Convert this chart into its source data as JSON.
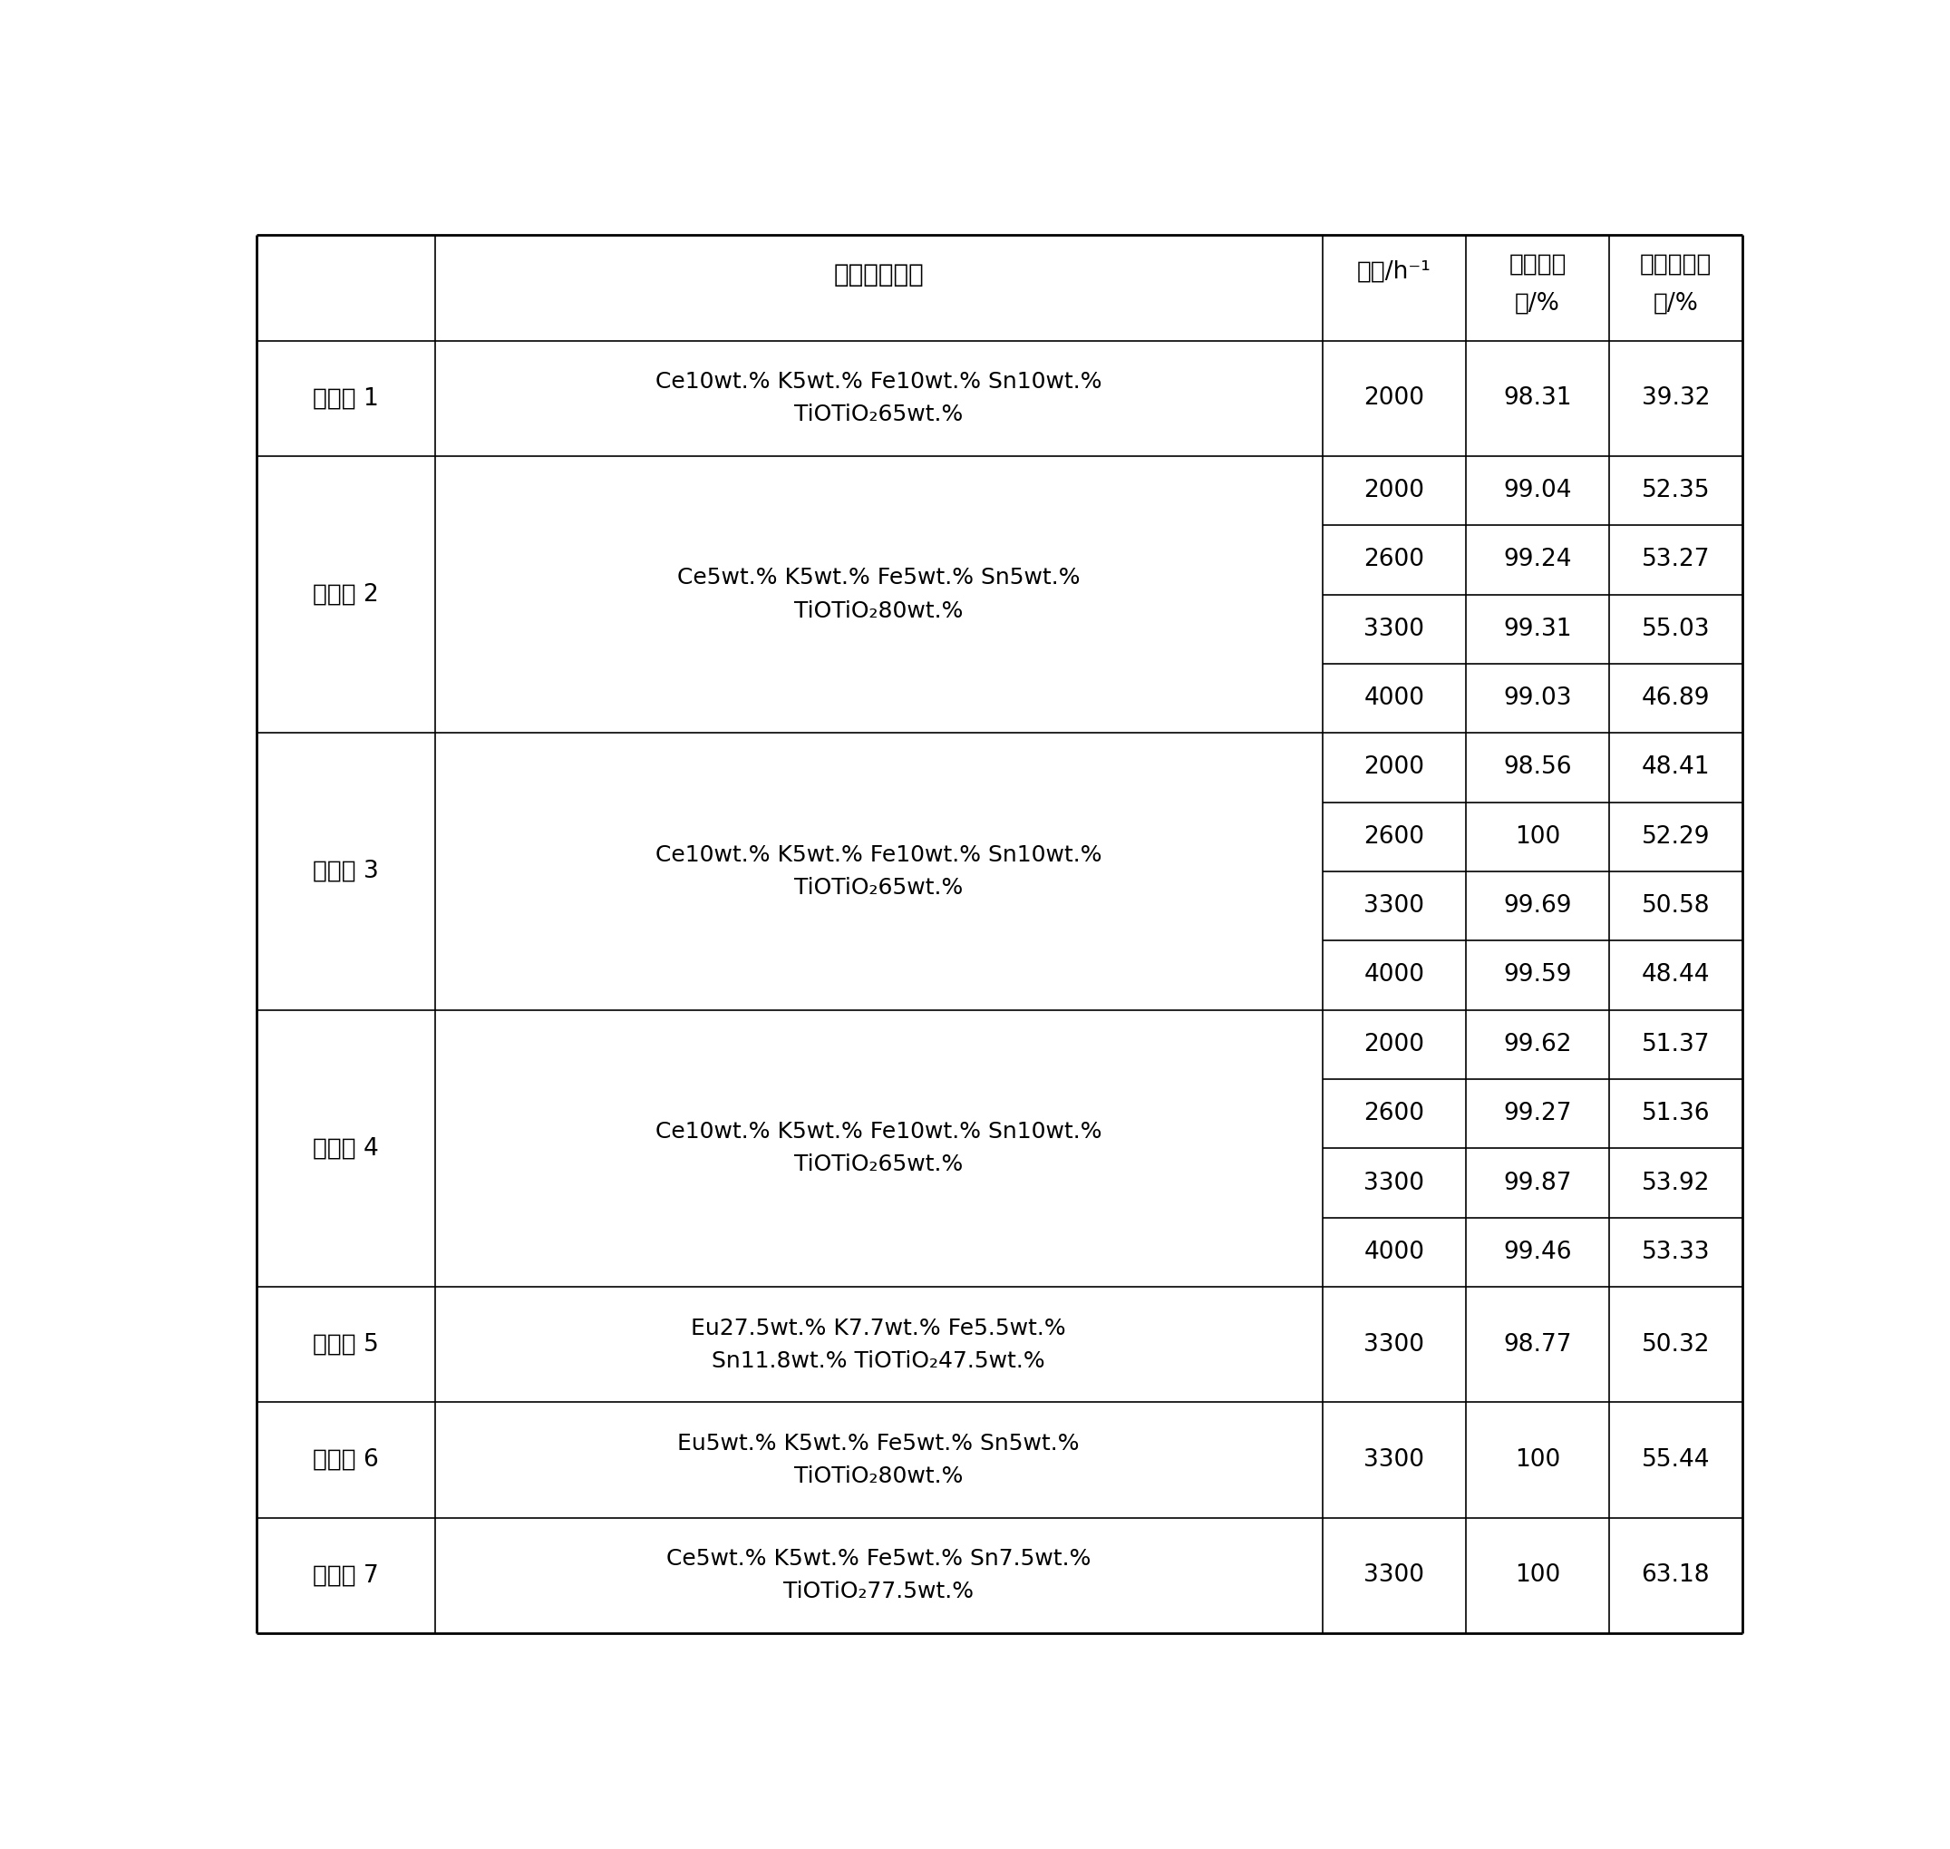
{
  "col_headers_line1": [
    "活性组分含量",
    "空速/h⁻¹",
    "乙烷转化",
    "氯乙烯选择"
  ],
  "col_headers_line2": [
    "",
    "",
    "率/%",
    "性/%"
  ],
  "rows": [
    {
      "example": "实施例 1",
      "comp_line1": "Ce10wt.% K5wt.% Fe10wt.% Sn10wt.%",
      "comp_line2_before": "TiO",
      "comp_line2_after": "65wt.%",
      "data": [
        [
          "2000",
          "98.31",
          "39.32"
        ]
      ]
    },
    {
      "example": "实施例 2",
      "comp_line1": "Ce5wt.% K5wt.% Fe5wt.% Sn5wt.%",
      "comp_line2_before": "TiO",
      "comp_line2_after": "80wt.%",
      "data": [
        [
          "2000",
          "99.04",
          "52.35"
        ],
        [
          "2600",
          "99.24",
          "53.27"
        ],
        [
          "3300",
          "99.31",
          "55.03"
        ],
        [
          "4000",
          "99.03",
          "46.89"
        ]
      ]
    },
    {
      "example": "实施例 3",
      "comp_line1": "Ce10wt.% K5wt.% Fe10wt.% Sn10wt.%",
      "comp_line2_before": "TiO",
      "comp_line2_after": "65wt.%",
      "data": [
        [
          "2000",
          "98.56",
          "48.41"
        ],
        [
          "2600",
          "100",
          "52.29"
        ],
        [
          "3300",
          "99.69",
          "50.58"
        ],
        [
          "4000",
          "99.59",
          "48.44"
        ]
      ]
    },
    {
      "example": "实施例 4",
      "comp_line1": "Ce10wt.% K5wt.% Fe10wt.% Sn10wt.%",
      "comp_line2_before": "TiO",
      "comp_line2_after": "65wt.%",
      "data": [
        [
          "2000",
          "99.62",
          "51.37"
        ],
        [
          "2600",
          "99.27",
          "51.36"
        ],
        [
          "3300",
          "99.87",
          "53.92"
        ],
        [
          "4000",
          "99.46",
          "53.33"
        ]
      ]
    },
    {
      "example": "实施例 5",
      "comp_line1": "Eu27.5wt.% K7.7wt.% Fe5.5wt.%",
      "comp_line2_before": "Sn11.8wt.% TiO",
      "comp_line2_after": "47.5wt.%",
      "data": [
        [
          "3300",
          "98.77",
          "50.32"
        ]
      ]
    },
    {
      "example": "实施例 6",
      "comp_line1": "Eu5wt.% K5wt.% Fe5wt.% Sn5wt.%",
      "comp_line2_before": "TiO",
      "comp_line2_after": "80wt.%",
      "data": [
        [
          "3300",
          "100",
          "55.44"
        ]
      ]
    },
    {
      "example": "实施例 7",
      "comp_line1": "Ce5wt.% K5wt.% Fe5wt.% Sn7.5wt.%",
      "comp_line2_before": "TiO",
      "comp_line2_after": "77.5wt.%",
      "data": [
        [
          "3300",
          "100",
          "63.18"
        ]
      ]
    }
  ],
  "background_color": "#ffffff",
  "border_color": "#000000",
  "text_color": "#000000"
}
